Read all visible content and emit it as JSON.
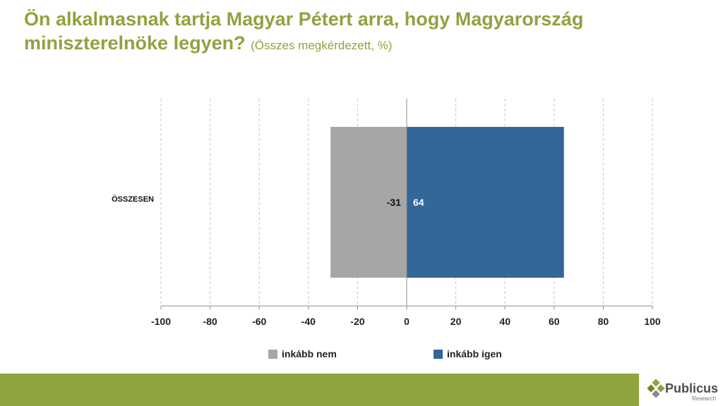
{
  "title": {
    "main": "Ön alkalmasnak tartja Magyar Pétert arra, hogy Magyarország miniszterelnöke legyen?",
    "subtitle": "(Összes megkérdezett, %)"
  },
  "colors": {
    "title": "#8fa33f",
    "footer_bar": "#8fa33f",
    "inkabb_nem": "#a6a6a6",
    "inkabb_igen": "#336699"
  },
  "chart_data": {
    "type": "bar",
    "orientation": "horizontal",
    "stacked": true,
    "categories": [
      "ÖSSZESEN"
    ],
    "series": [
      {
        "name": "inkább nem",
        "values": [
          -31
        ],
        "color": "#a6a6a6"
      },
      {
        "name": "inkább igen",
        "values": [
          64
        ],
        "color": "#336699"
      }
    ],
    "data_labels": [
      "-31",
      "64"
    ],
    "xlim": [
      -100,
      100
    ],
    "xticks": [
      -100,
      -80,
      -60,
      -40,
      -20,
      0,
      20,
      40,
      60,
      80,
      100
    ],
    "xtick_labels": [
      "-100",
      "-80",
      "-60",
      "-40",
      "-20",
      "0",
      "20",
      "40",
      "60",
      "80",
      "100"
    ],
    "grid": "vertical-dashed",
    "legend_position": "bottom"
  },
  "legend": {
    "items": [
      {
        "label": "inkább nem",
        "color": "#a6a6a6"
      },
      {
        "label": "inkább igen",
        "color": "#336699"
      }
    ]
  },
  "logo": {
    "name": "Publicus",
    "tagline": "Research",
    "icon": "diamond-cluster-icon"
  }
}
